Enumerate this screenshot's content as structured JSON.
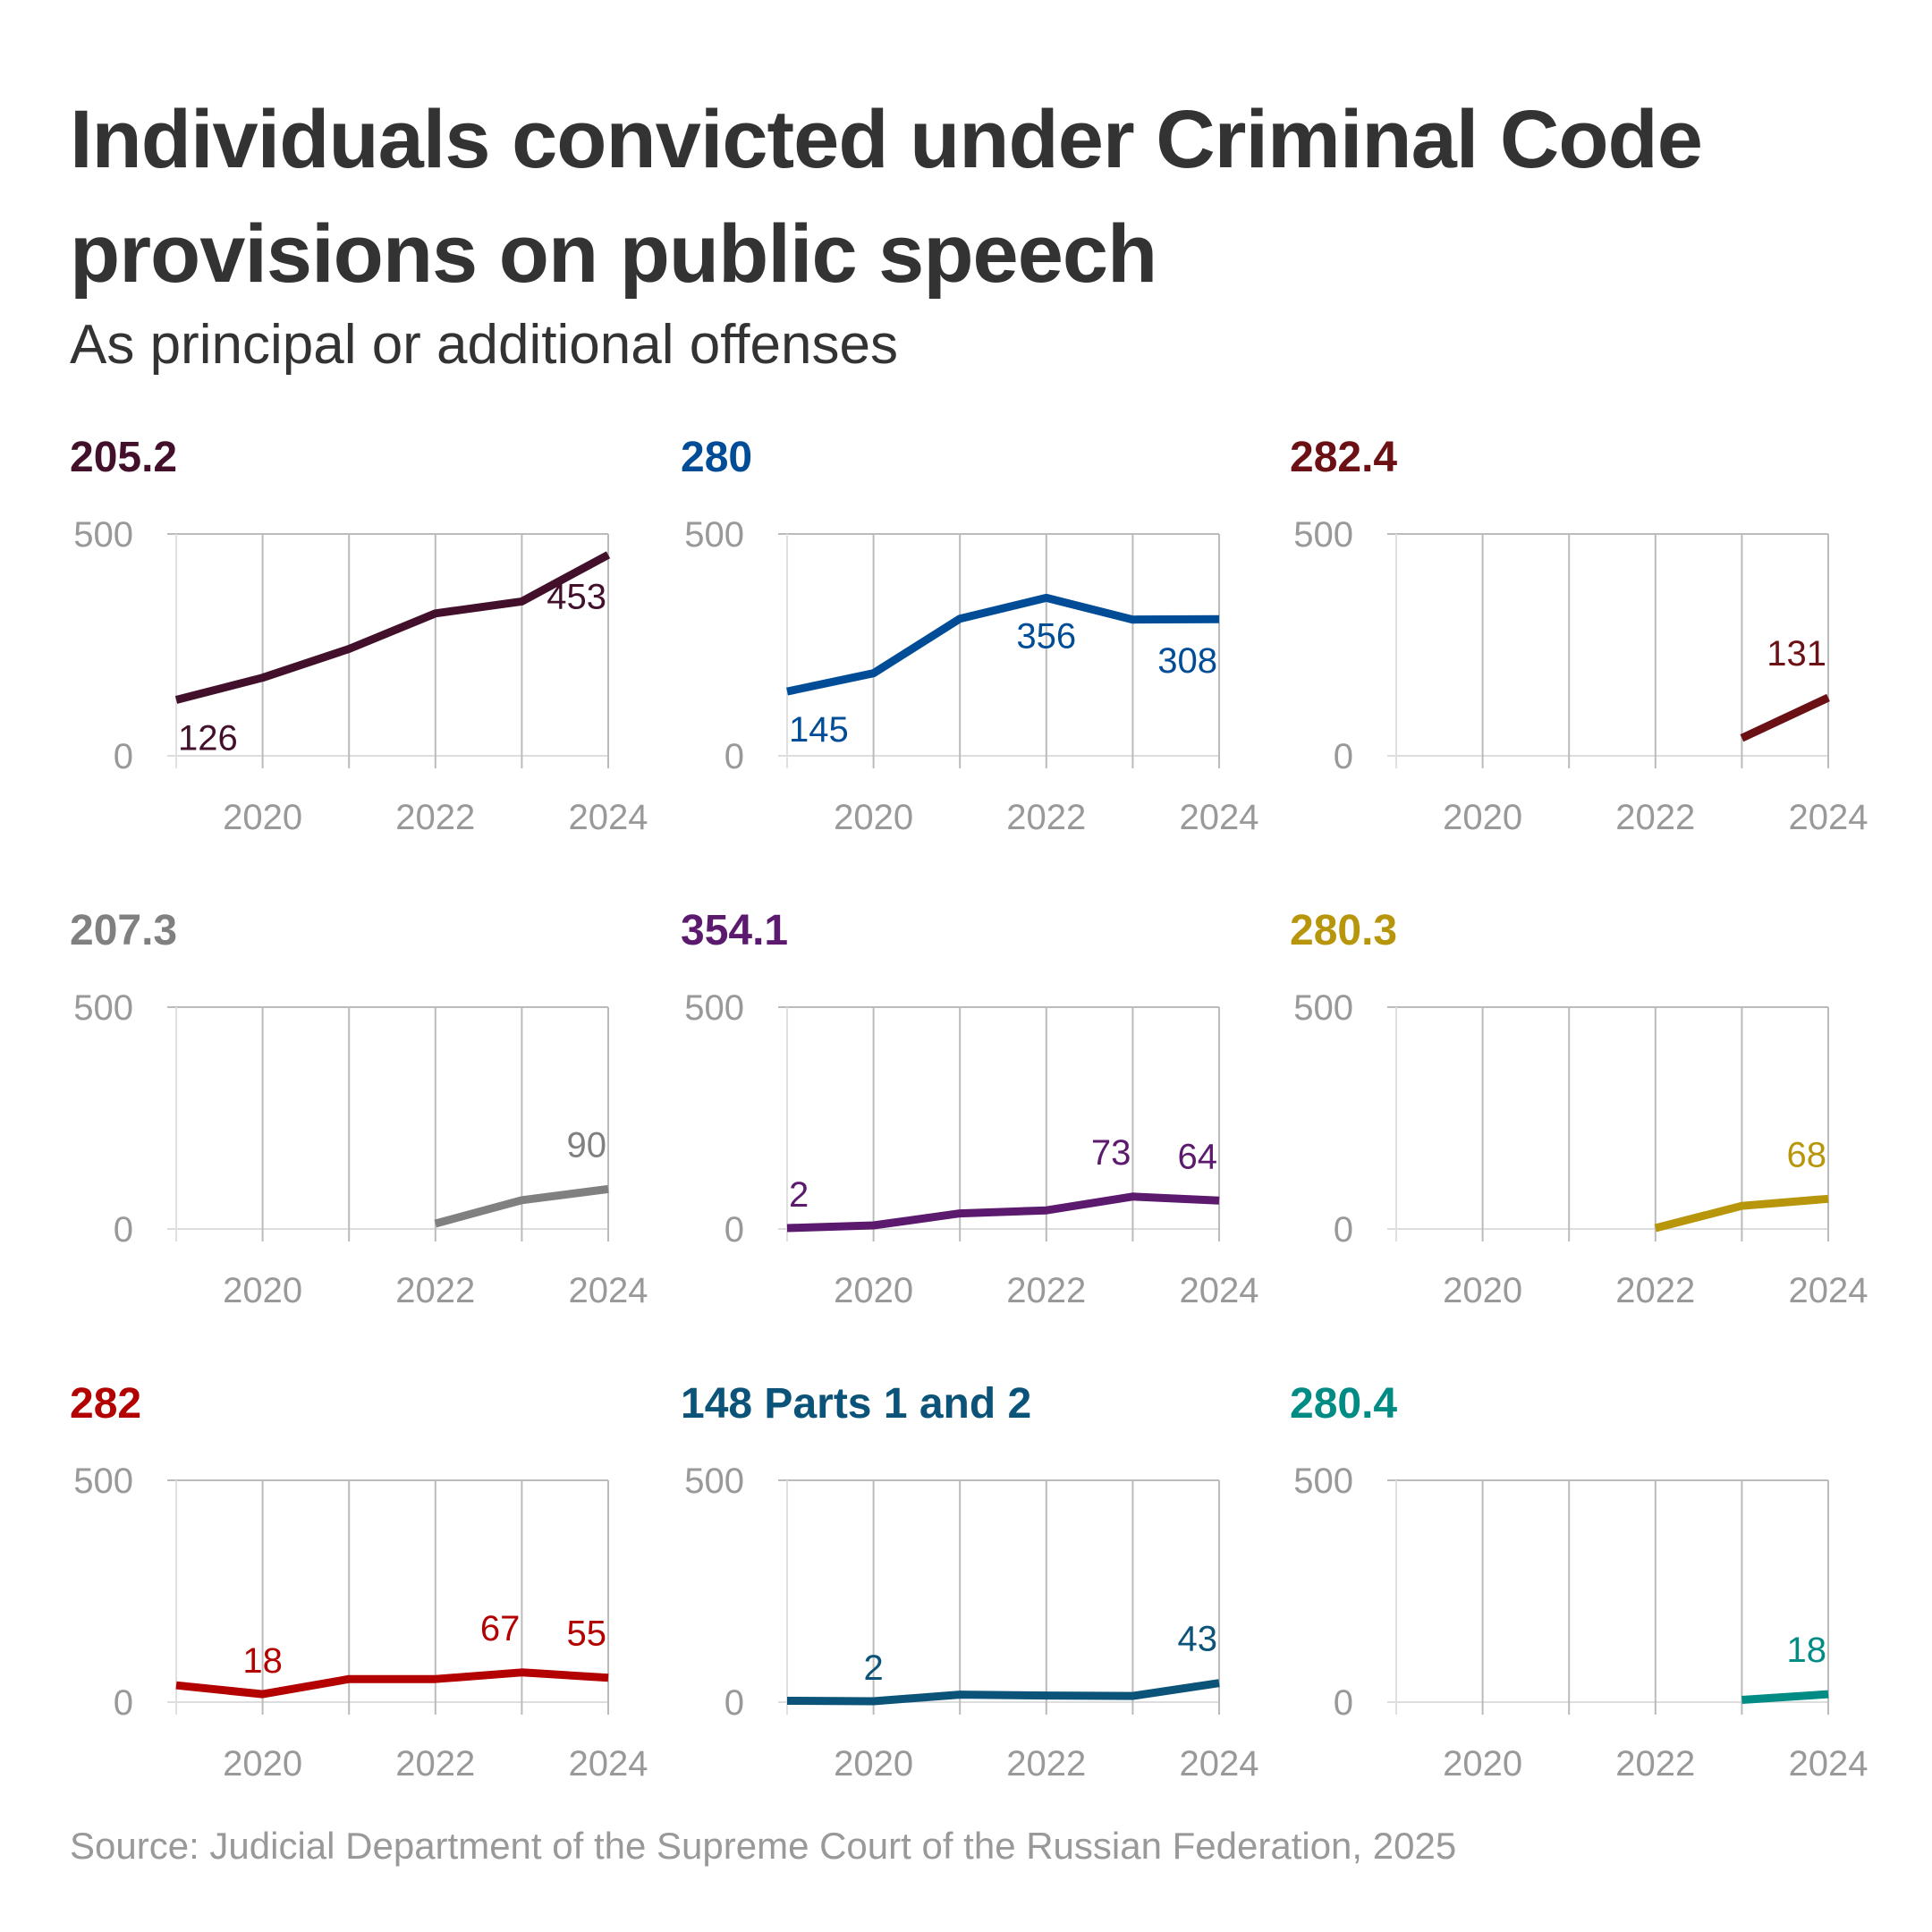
{
  "header": {
    "title": "Individuals convicted under Criminal Code provisions on public speech",
    "subtitle": "As principal or additional offenses"
  },
  "footer": {
    "source": "Source: Judicial Department of the Supreme Court of the Russian Federation, 2025"
  },
  "chart_data": [
    {
      "type": "line",
      "title": "205.2",
      "color": "#42102b",
      "x": [
        2019,
        2020,
        2021,
        2022,
        2023,
        2024
      ],
      "values": [
        126,
        176,
        241,
        321,
        348,
        453
      ],
      "labels": [
        {
          "index": 0,
          "text": "126",
          "pos": "below"
        },
        {
          "index": 5,
          "text": "453",
          "pos": "below-left"
        }
      ],
      "ylim": [
        0,
        500
      ],
      "yticks": [
        "0",
        "500"
      ],
      "xticks": [
        "2020",
        "2022",
        "2024"
      ],
      "grid": true
    },
    {
      "type": "line",
      "title": "280",
      "color": "#004c97",
      "x": [
        2019,
        2020,
        2021,
        2022,
        2023,
        2024
      ],
      "values": [
        145,
        186,
        309,
        356,
        307,
        308
      ],
      "labels": [
        {
          "index": 0,
          "text": "145",
          "pos": "below"
        },
        {
          "index": 3,
          "text": "356",
          "pos": "below"
        },
        {
          "index": 5,
          "text": "308",
          "pos": "below-left"
        }
      ],
      "ylim": [
        0,
        500
      ],
      "yticks": [
        "0",
        "500"
      ],
      "xticks": [
        "2020",
        "2022",
        "2024"
      ],
      "grid": true
    },
    {
      "type": "line",
      "title": "282.4",
      "color": "#6b1014",
      "x": [
        2019,
        2020,
        2021,
        2022,
        2023,
        2024
      ],
      "values": [
        null,
        null,
        null,
        null,
        40,
        131
      ],
      "labels": [
        {
          "index": 5,
          "text": "131",
          "pos": "above-left"
        }
      ],
      "ylim": [
        0,
        500
      ],
      "yticks": [
        "0",
        "500"
      ],
      "xticks": [
        "2020",
        "2022",
        "2024"
      ],
      "grid": true
    },
    {
      "type": "line",
      "title": "207.3",
      "color": "#808080",
      "x": [
        2019,
        2020,
        2021,
        2022,
        2023,
        2024
      ],
      "values": [
        null,
        null,
        null,
        12,
        65,
        90
      ],
      "labels": [
        {
          "index": 5,
          "text": "90",
          "pos": "above-left"
        }
      ],
      "ylim": [
        0,
        500
      ],
      "yticks": [
        "0",
        "500"
      ],
      "xticks": [
        "2020",
        "2022",
        "2024"
      ],
      "grid": true
    },
    {
      "type": "line",
      "title": "354.1",
      "color": "#5c1a6e",
      "x": [
        2019,
        2020,
        2021,
        2022,
        2023,
        2024
      ],
      "values": [
        2,
        8,
        35,
        42,
        73,
        64
      ],
      "labels": [
        {
          "index": 0,
          "text": "2",
          "pos": "above-right"
        },
        {
          "index": 4,
          "text": "73",
          "pos": "above-left"
        },
        {
          "index": 5,
          "text": "64",
          "pos": "above-left"
        }
      ],
      "ylim": [
        0,
        500
      ],
      "yticks": [
        "0",
        "500"
      ],
      "xticks": [
        "2020",
        "2022",
        "2024"
      ],
      "grid": true
    },
    {
      "type": "line",
      "title": "280.3",
      "color": "#b8960c",
      "x": [
        2019,
        2020,
        2021,
        2022,
        2023,
        2024
      ],
      "values": [
        null,
        null,
        null,
        2,
        52,
        68
      ],
      "labels": [
        {
          "index": 5,
          "text": "68",
          "pos": "above-left"
        }
      ],
      "ylim": [
        0,
        500
      ],
      "yticks": [
        "0",
        "500"
      ],
      "xticks": [
        "2020",
        "2022",
        "2024"
      ],
      "grid": true
    },
    {
      "type": "line",
      "title": "282",
      "color": "#b30000",
      "x": [
        2019,
        2020,
        2021,
        2022,
        2023,
        2024
      ],
      "values": [
        38,
        18,
        52,
        52,
        67,
        55
      ],
      "labels": [
        {
          "index": 1,
          "text": "18",
          "pos": "above"
        },
        {
          "index": 4,
          "text": "67",
          "pos": "above-left"
        },
        {
          "index": 5,
          "text": "55",
          "pos": "above-left"
        }
      ],
      "ylim": [
        0,
        500
      ],
      "yticks": [
        "0",
        "500"
      ],
      "xticks": [
        "2020",
        "2022",
        "2024"
      ],
      "grid": true
    },
    {
      "type": "line",
      "title": "148 Parts 1 and 2",
      "color": "#0c5379",
      "x": [
        2019,
        2020,
        2021,
        2022,
        2023,
        2024
      ],
      "values": [
        3,
        2,
        17,
        15,
        14,
        43
      ],
      "labels": [
        {
          "index": 1,
          "text": "2",
          "pos": "above"
        },
        {
          "index": 5,
          "text": "43",
          "pos": "above-left"
        }
      ],
      "ylim": [
        0,
        500
      ],
      "yticks": [
        "0",
        "500"
      ],
      "xticks": [
        "2020",
        "2022",
        "2024"
      ],
      "grid": true
    },
    {
      "type": "line",
      "title": "280.4",
      "color": "#008b84",
      "x": [
        2019,
        2020,
        2021,
        2022,
        2023,
        2024
      ],
      "values": [
        null,
        null,
        null,
        null,
        5,
        18
      ],
      "labels": [
        {
          "index": 5,
          "text": "18",
          "pos": "above-left"
        }
      ],
      "ylim": [
        0,
        500
      ],
      "yticks": [
        "0",
        "500"
      ],
      "xticks": [
        "2020",
        "2022",
        "2024"
      ],
      "grid": true
    }
  ]
}
